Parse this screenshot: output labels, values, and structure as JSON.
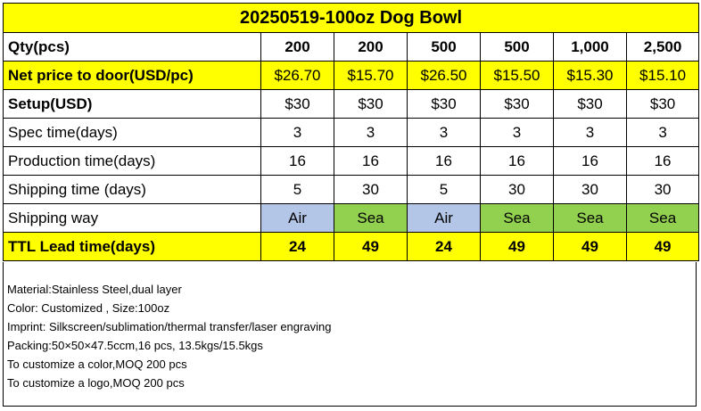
{
  "title": "20250519-100oz Dog Bowl",
  "rows": {
    "qty": {
      "label": "Qty(pcs)",
      "values": [
        "200",
        "200",
        "500",
        "500",
        "1,000",
        "2,500"
      ]
    },
    "net_price": {
      "label": "Net price to door(USD/pc)",
      "values": [
        "$26.70",
        "$15.70",
        "$26.50",
        "$15.50",
        "$15.30",
        "$15.10"
      ]
    },
    "setup": {
      "label": "Setup(USD)",
      "values": [
        "$30",
        "$30",
        "$30",
        "$30",
        "$30",
        "$30"
      ]
    },
    "spec": {
      "label": "Spec time(days)",
      "values": [
        "3",
        "3",
        "3",
        "3",
        "3",
        "3"
      ]
    },
    "production": {
      "label": "Production time(days)",
      "values": [
        "16",
        "16",
        "16",
        "16",
        "16",
        "16"
      ]
    },
    "shipping": {
      "label": "Shipping time (days)",
      "values": [
        "5",
        "30",
        "5",
        "30",
        "30",
        "30"
      ]
    },
    "way": {
      "label": "Shipping way",
      "values": [
        "Air",
        "Sea",
        "Air",
        "Sea",
        "Sea",
        "Sea"
      ]
    },
    "ttl": {
      "label": "TTL Lead time(days)",
      "values": [
        "24",
        "49",
        "24",
        "49",
        "49",
        "49"
      ]
    }
  },
  "colors": {
    "highlight": "#ffff00",
    "air": "#b4c6e7",
    "sea": "#92d050"
  },
  "notes": [
    "Material:Stainless Steel,dual layer",
    "Color: Customized , Size:100oz",
    "Imprint: Silkscreen/sublimation/thermal transfer/laser engraving",
    "Packing:50×50×47.5ccm,16 pcs, 13.5kgs/15.5kgs",
    "To customize a color,MOQ 200 pcs",
    "To customize a logo,MOQ 200 pcs"
  ]
}
